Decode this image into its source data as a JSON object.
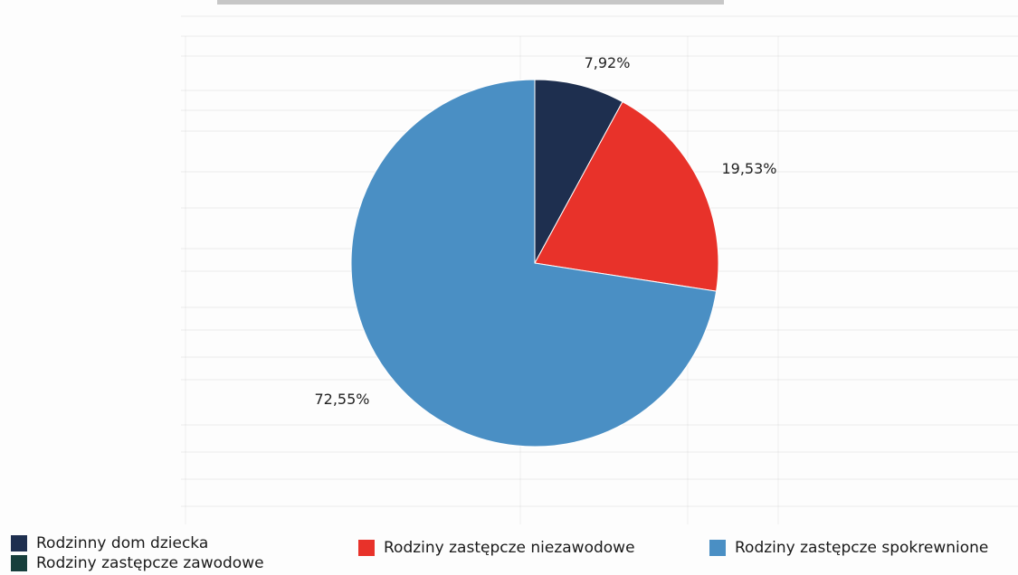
{
  "chart_data": {
    "type": "pie",
    "categories": [
      "Rodzinny dom dziecka",
      "Rodziny zastępcze zawodowe",
      "Rodziny zastępcze niezawodowe",
      "Rodziny zastępcze spokrewnione"
    ],
    "values": [
      7.92,
      0,
      19.53,
      72.55
    ],
    "labels": [
      "7,92%",
      "",
      "19,53%",
      "72,55%"
    ],
    "colors": [
      "#1e2f4f",
      "#173f3c",
      "#e8322a",
      "#4a8fc4"
    ],
    "title": "",
    "legend_placement": "bottom"
  },
  "legend": {
    "items": [
      {
        "label": "Rodzinny dom dziecka",
        "color": "#1e2f4f"
      },
      {
        "label": "Rodziny zastępcze zawodowe",
        "color": "#173f3c"
      },
      {
        "label": "Rodziny zastępcze niezawodowe",
        "color": "#e8322a"
      },
      {
        "label": "Rodziny zastępcze spokrewnione",
        "color": "#4a8fc4"
      }
    ]
  }
}
